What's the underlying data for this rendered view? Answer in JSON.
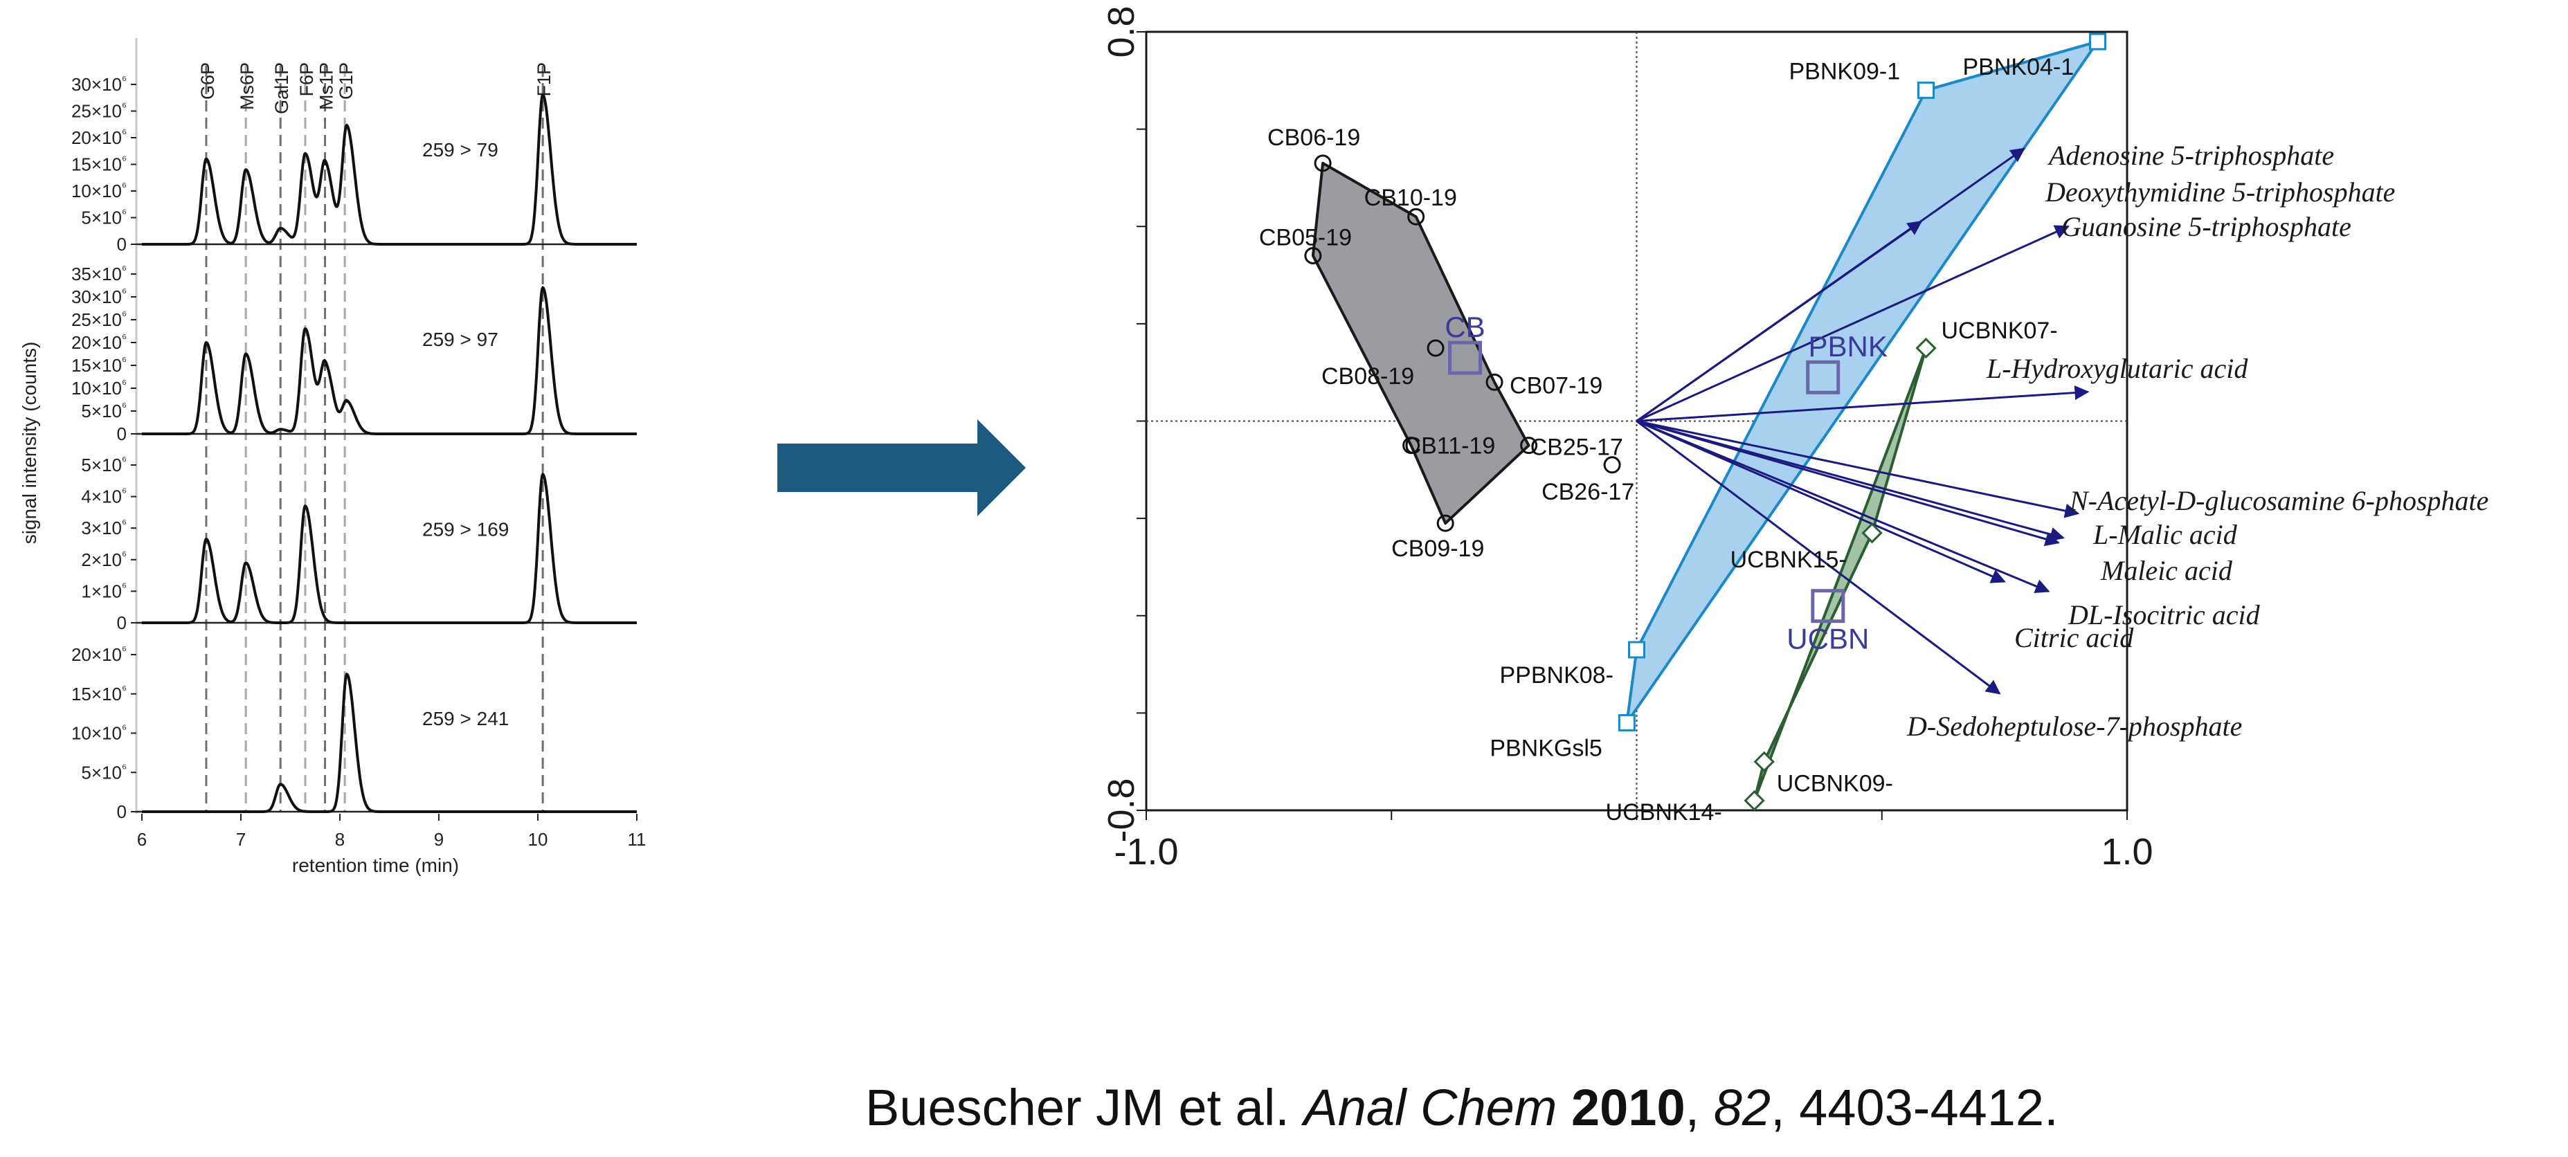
{
  "chart_data": [
    {
      "type": "line",
      "title": "",
      "xlabel": "retention time (min)",
      "ylabel": "signal intensity (counts)",
      "xlim": [
        6,
        11
      ],
      "x_ticks": [
        "6",
        "7",
        "8",
        "9",
        "10",
        "11"
      ],
      "peak_labels": [
        {
          "name": "G6P",
          "x": 6.65
        },
        {
          "name": "Ms6P",
          "x": 7.05
        },
        {
          "name": "Gal1P",
          "x": 7.4
        },
        {
          "name": "F6P",
          "x": 7.65
        },
        {
          "name": "Ms1P",
          "x": 7.85
        },
        {
          "name": "G1P",
          "x": 8.05
        },
        {
          "name": "F1P",
          "x": 10.05
        }
      ],
      "panels": [
        {
          "transition": "259 > 79",
          "ylim": [
            0,
            30
          ],
          "y_ticks": [
            "0",
            "5x10⁶",
            "10x10⁶",
            "15x10⁶",
            "20x10⁶",
            "25x10⁶",
            "30x10⁶"
          ],
          "peaks": [
            {
              "x": 6.65,
              "h": 16
            },
            {
              "x": 7.05,
              "h": 14
            },
            {
              "x": 7.4,
              "h": 3
            },
            {
              "x": 7.65,
              "h": 17
            },
            {
              "x": 7.85,
              "h": 15
            },
            {
              "x": 8.07,
              "h": 22
            },
            {
              "x": 10.05,
              "h": 28
            }
          ]
        },
        {
          "transition": "259 > 97",
          "ylim": [
            0,
            35
          ],
          "y_ticks": [
            "0",
            "5x10⁶",
            "10x10⁶",
            "15x10⁶",
            "20x10⁶",
            "25x10⁶",
            "30x10⁶",
            "35x10⁶"
          ],
          "peaks": [
            {
              "x": 6.65,
              "h": 20
            },
            {
              "x": 7.05,
              "h": 17.5
            },
            {
              "x": 7.4,
              "h": 1
            },
            {
              "x": 7.65,
              "h": 23
            },
            {
              "x": 7.85,
              "h": 15
            },
            {
              "x": 8.07,
              "h": 7
            },
            {
              "x": 10.05,
              "h": 32
            }
          ]
        },
        {
          "transition": "259 > 169",
          "ylim": [
            0,
            5
          ],
          "y_ticks": [
            "0",
            "1x10⁶",
            "2x10⁶",
            "3x10⁶",
            "4x10⁶",
            "5x10⁶"
          ],
          "peaks": [
            {
              "x": 6.65,
              "h": 2.65
            },
            {
              "x": 7.05,
              "h": 1.9
            },
            {
              "x": 7.65,
              "h": 3.7
            },
            {
              "x": 10.05,
              "h": 4.7
            }
          ]
        },
        {
          "transition": "259 > 241",
          "ylim": [
            0,
            20
          ],
          "y_ticks": [
            "0",
            "5x10⁶",
            "10x10⁶",
            "15x10⁶",
            "20x10⁶"
          ],
          "peaks": [
            {
              "x": 7.4,
              "h": 3.5
            },
            {
              "x": 8.07,
              "h": 17.5
            }
          ]
        }
      ]
    },
    {
      "type": "scatter",
      "title": "",
      "xlim": [
        -1.0,
        1.0
      ],
      "ylim": [
        -0.8,
        0.8
      ],
      "x_ticks": [
        "-1.0",
        "1.0"
      ],
      "y_ticks": [
        "0.8",
        "-0.8"
      ],
      "groups": [
        {
          "name": "CB",
          "marker": "circle",
          "color": "#9b9ca1",
          "edge": "#1a1a1a",
          "centroid": {
            "x": -0.35,
            "y": 0.13
          },
          "hull": [
            "CB06-19",
            "CB10-19",
            "CB07-19",
            "CB25-17",
            "CB09-19",
            "CB11-19",
            "CB05-19"
          ],
          "points": [
            {
              "label": "CB06-19",
              "x": -0.64,
              "y": 0.53
            },
            {
              "label": "CB10-19",
              "x": -0.45,
              "y": 0.42
            },
            {
              "label": "CB05-19",
              "x": -0.66,
              "y": 0.34
            },
            {
              "label": "CB08-19",
              "x": -0.41,
              "y": 0.15
            },
            {
              "label": "CB07-19",
              "x": -0.29,
              "y": 0.08
            },
            {
              "label": "CB11-19",
              "x": -0.46,
              "y": -0.05
            },
            {
              "label": "CB25-17",
              "x": -0.22,
              "y": -0.05
            },
            {
              "label": "CB26-17",
              "x": -0.05,
              "y": -0.09
            },
            {
              "label": "CB09-19",
              "x": -0.39,
              "y": -0.21
            }
          ]
        },
        {
          "name": "PBNK",
          "marker": "square",
          "color": "#a8d1ef",
          "edge": "#1b88c8",
          "centroid": {
            "x": 0.38,
            "y": 0.09
          },
          "hull": [
            "PBNK04-1",
            "PBNK09-1",
            "PPBNK08-",
            "PBNKGsl5"
          ],
          "points": [
            {
              "label": "PBNK09-1",
              "x": 0.59,
              "y": 0.68
            },
            {
              "label": "PBNK04-1",
              "x": 0.94,
              "y": 0.78
            },
            {
              "label": "PPBNK08-",
              "x": 0.0,
              "y": -0.47
            },
            {
              "label": "PBNKGsl5",
              "x": -0.02,
              "y": -0.62
            }
          ]
        },
        {
          "name": "UCBN",
          "marker": "diamond",
          "color": "#a3c3a6",
          "edge": "#2c5e34",
          "centroid": {
            "x": 0.39,
            "y": -0.38
          },
          "hull": [
            "UCBNK07-",
            "UCBNK14-",
            "UCBNK09-",
            "UCBNK15-"
          ],
          "points": [
            {
              "label": "UCBNK07-",
              "x": 0.59,
              "y": 0.15
            },
            {
              "label": "UCBNK15-",
              "x": 0.48,
              "y": -0.23
            },
            {
              "label": "UCBNK09-",
              "x": 0.26,
              "y": -0.7
            },
            {
              "label": "UCBNK14-",
              "x": 0.24,
              "y": -0.78
            }
          ]
        }
      ],
      "vectors": [
        {
          "label": "Adenosine 5-triphosphate",
          "x": 0.79,
          "y": 0.56
        },
        {
          "label": "Deoxythymidine 5-triphosphate",
          "x": 0.58,
          "y": 0.41
        },
        {
          "label": "Guanosine 5-triphosphate",
          "x": 0.88,
          "y": 0.4
        },
        {
          "label": "L-Hydroxyglutaric acid",
          "x": 0.92,
          "y": 0.06
        },
        {
          "label": "N-Acetyl-D-glucosamine 6-phosphate",
          "x": 0.9,
          "y": -0.19
        },
        {
          "label": "L-Malic acid",
          "x": 0.87,
          "y": -0.24
        },
        {
          "label": "Maleic acid",
          "x": 0.86,
          "y": -0.25
        },
        {
          "label": "DL-Isocitric acid",
          "x": 0.84,
          "y": -0.35
        },
        {
          "label": "Citric acid",
          "x": 0.75,
          "y": -0.33
        },
        {
          "label": "D-Sedoheptulose-7-phosphate",
          "x": 0.74,
          "y": -0.56
        }
      ]
    }
  ],
  "citation": {
    "authors": "Buescher JM et al. ",
    "journal": "Anal Chem",
    "year": "2010",
    "volume": "82",
    "pages": ", 4403-4412."
  },
  "colors": {
    "arrow": "#1c5a80",
    "vector": "#1a1a80"
  }
}
